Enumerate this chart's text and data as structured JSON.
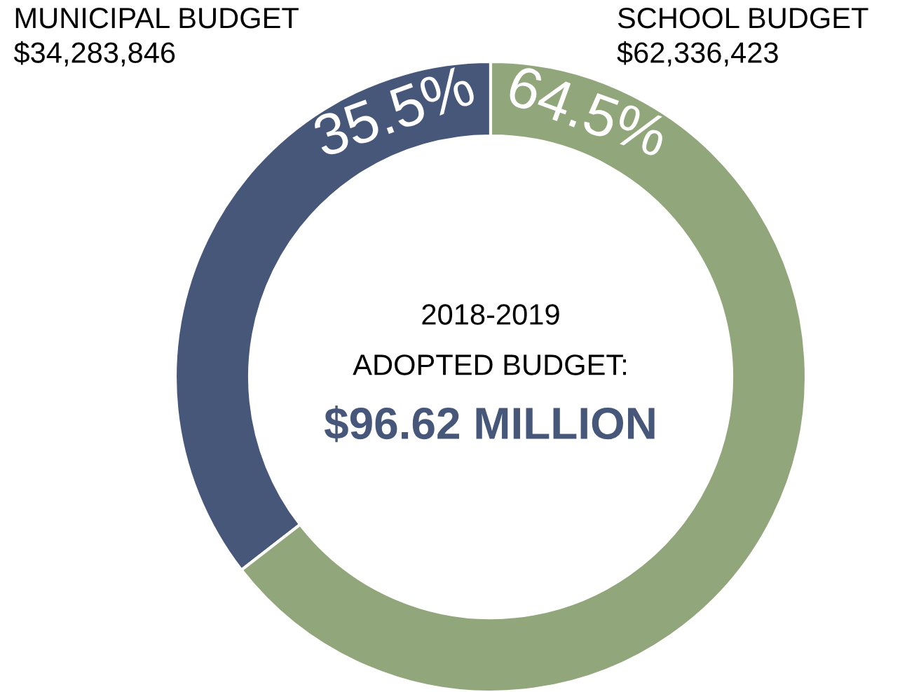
{
  "chart_data": {
    "type": "donut",
    "categories": [
      "MUNICIPAL BUDGET\n$34,283,846",
      "SCHOOL BUDGET\n$62,336,423"
    ],
    "values": [
      35.5,
      64.5
    ],
    "colors": [
      "#47577a",
      "#91a67a"
    ],
    "value_labels": [
      "35.5%",
      "64.5%"
    ],
    "annotations": [
      "2018-2019",
      "ADOPTED BUDGET:",
      "$96.62 MILLION"
    ],
    "legend": false
  }
}
